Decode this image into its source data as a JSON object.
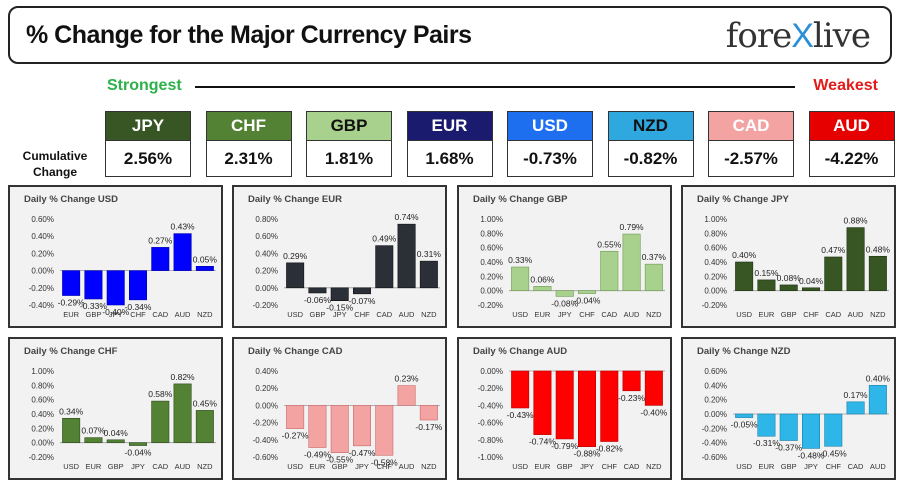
{
  "header": {
    "title": "% Change for the Major Currency Pairs",
    "logo_left": "fore",
    "logo_x": "X",
    "logo_right": "live"
  },
  "scale": {
    "strongest": "Strongest",
    "weakest": "Weakest"
  },
  "cumulative_label": "Cumulative Change",
  "currencies": [
    {
      "code": "JPY",
      "value": "2.56%",
      "bg": "#375623",
      "fg": "#ffffff"
    },
    {
      "code": "CHF",
      "value": "2.31%",
      "bg": "#548235",
      "fg": "#ffffff"
    },
    {
      "code": "GBP",
      "value": "1.81%",
      "bg": "#a9d18e",
      "fg": "#111111"
    },
    {
      "code": "EUR",
      "value": "1.68%",
      "bg": "#1a1a6e",
      "fg": "#ffffff"
    },
    {
      "code": "USD",
      "value": "-0.73%",
      "bg": "#1d6ff0",
      "fg": "#ffffff"
    },
    {
      "code": "NZD",
      "value": "-0.82%",
      "bg": "#2fa8e0",
      "fg": "#111111"
    },
    {
      "code": "CAD",
      "value": "-2.57%",
      "bg": "#f4a3a3",
      "fg": "#ffffff"
    },
    {
      "code": "AUD",
      "value": "-4.22%",
      "bg": "#e60000",
      "fg": "#ffffff"
    }
  ],
  "chart_data": [
    {
      "type": "bar",
      "title": "Daily % Change USD",
      "categories": [
        "EUR",
        "GBP",
        "JPY",
        "CHF",
        "CAD",
        "AUD",
        "NZD"
      ],
      "values": [
        -0.29,
        -0.33,
        -0.4,
        -0.34,
        0.27,
        0.43,
        0.05
      ],
      "labels": [
        "-0.29%",
        "-0.33%",
        "-0.40%",
        "-0.34%",
        "0.27%",
        "0.43%",
        "0.05%"
      ],
      "ylim": [
        -0.4,
        0.6
      ],
      "yticks": [
        -0.4,
        -0.2,
        0,
        0.2,
        0.4,
        0.6
      ],
      "tick_labels": [
        "-0.40%",
        "-0.20%",
        "0.00%",
        "0.20%",
        "0.40%",
        "0.60%"
      ],
      "color": "#0000ff",
      "edge": "#0000aa"
    },
    {
      "type": "bar",
      "title": "Daily % Change EUR",
      "categories": [
        "USD",
        "GBP",
        "JPY",
        "CHF",
        "CAD",
        "AUD",
        "NZD"
      ],
      "values": [
        0.29,
        -0.06,
        -0.15,
        -0.07,
        0.49,
        0.74,
        0.31
      ],
      "labels": [
        "0.29%",
        "-0.06%",
        "-0.15%",
        "-0.07%",
        "0.49%",
        "0.74%",
        "0.31%"
      ],
      "ylim": [
        -0.2,
        0.8
      ],
      "yticks": [
        -0.2,
        0,
        0.2,
        0.4,
        0.6,
        0.8
      ],
      "tick_labels": [
        "-0.20%",
        "0.00%",
        "0.20%",
        "0.40%",
        "0.60%",
        "0.80%"
      ],
      "color": "#2b2f38",
      "edge": "#111111"
    },
    {
      "type": "bar",
      "title": "Daily % Change GBP",
      "categories": [
        "USD",
        "EUR",
        "JPY",
        "CHF",
        "CAD",
        "AUD",
        "NZD"
      ],
      "values": [
        0.33,
        0.06,
        -0.08,
        -0.04,
        0.55,
        0.79,
        0.37
      ],
      "labels": [
        "0.33%",
        "0.06%",
        "-0.08%",
        "-0.04%",
        "0.55%",
        "0.79%",
        "0.37%"
      ],
      "ylim": [
        -0.2,
        1.0
      ],
      "yticks": [
        -0.2,
        0,
        0.2,
        0.4,
        0.6,
        0.8,
        1.0
      ],
      "tick_labels": [
        "-0.20%",
        "0.00%",
        "0.20%",
        "0.40%",
        "0.60%",
        "0.80%",
        "1.00%"
      ],
      "color": "#a9d18e",
      "edge": "#6e9a52"
    },
    {
      "type": "bar",
      "title": "Daily % Change JPY",
      "categories": [
        "USD",
        "EUR",
        "GBP",
        "CHF",
        "CAD",
        "AUD",
        "NZD"
      ],
      "values": [
        0.4,
        0.15,
        0.08,
        0.04,
        0.47,
        0.88,
        0.48
      ],
      "labels": [
        "0.40%",
        "0.15%",
        "0.08%",
        "0.04%",
        "0.47%",
        "0.88%",
        "0.48%"
      ],
      "ylim": [
        -0.2,
        1.0
      ],
      "yticks": [
        -0.2,
        0,
        0.2,
        0.4,
        0.6,
        0.8,
        1.0
      ],
      "tick_labels": [
        "-0.20%",
        "0.00%",
        "0.20%",
        "0.40%",
        "0.60%",
        "0.80%",
        "1.00%"
      ],
      "color": "#375623",
      "edge": "#1f3314"
    },
    {
      "type": "bar",
      "title": "Daily % Change CHF",
      "categories": [
        "USD",
        "EUR",
        "GBP",
        "JPY",
        "CAD",
        "AUD",
        "NZD"
      ],
      "values": [
        0.34,
        0.07,
        0.04,
        -0.04,
        0.58,
        0.82,
        0.45
      ],
      "labels": [
        "0.34%",
        "0.07%",
        "0.04%",
        "-0.04%",
        "0.58%",
        "0.82%",
        "0.45%"
      ],
      "ylim": [
        -0.2,
        1.0
      ],
      "yticks": [
        -0.2,
        0,
        0.2,
        0.4,
        0.6,
        0.8,
        1.0
      ],
      "tick_labels": [
        "-0.20%",
        "0.00%",
        "0.20%",
        "0.40%",
        "0.60%",
        "0.80%",
        "1.00%"
      ],
      "color": "#548235",
      "edge": "#2f4a1d"
    },
    {
      "type": "bar",
      "title": "Daily % Change CAD",
      "categories": [
        "USD",
        "EUR",
        "GBP",
        "JPY",
        "CHF",
        "AUD",
        "NZD"
      ],
      "values": [
        -0.27,
        -0.49,
        -0.55,
        -0.47,
        -0.58,
        0.23,
        -0.17
      ],
      "labels": [
        "-0.27%",
        "-0.49%",
        "-0.55%",
        "-0.47%",
        "-0.58%",
        "0.23%",
        "-0.17%"
      ],
      "ylim": [
        -0.6,
        0.4
      ],
      "yticks": [
        -0.6,
        -0.4,
        -0.2,
        0,
        0.2,
        0.4
      ],
      "tick_labels": [
        "-0.60%",
        "-0.40%",
        "-0.20%",
        "0.00%",
        "0.20%",
        "0.40%"
      ],
      "color": "#f4a3a3",
      "edge": "#c86a6a"
    },
    {
      "type": "bar",
      "title": "Daily % Change AUD",
      "categories": [
        "USD",
        "EUR",
        "GBP",
        "JPY",
        "CHF",
        "CAD",
        "NZD"
      ],
      "values": [
        -0.43,
        -0.74,
        -0.79,
        -0.88,
        -0.82,
        -0.23,
        -0.4
      ],
      "labels": [
        "-0.43%",
        "-0.74%",
        "-0.79%",
        "-0.88%",
        "-0.82%",
        "-0.23%",
        "-0.40%"
      ],
      "ylim": [
        -1.0,
        0
      ],
      "yticks": [
        -1.0,
        -0.8,
        -0.6,
        -0.4,
        -0.2,
        0
      ],
      "tick_labels": [
        "-1.00%",
        "-0.80%",
        "-0.60%",
        "-0.40%",
        "-0.20%",
        "0.00%"
      ],
      "color": "#ff0000",
      "edge": "#b30000"
    },
    {
      "type": "bar",
      "title": "Daily % Change NZD",
      "categories": [
        "USD",
        "EUR",
        "GBP",
        "JPY",
        "CHF",
        "CAD",
        "AUD"
      ],
      "values": [
        -0.05,
        -0.31,
        -0.37,
        -0.48,
        -0.45,
        0.17,
        0.4
      ],
      "labels": [
        "-0.05%",
        "-0.31%",
        "-0.37%",
        "-0.48%",
        "-0.45%",
        "0.17%",
        "0.40%"
      ],
      "ylim": [
        -0.6,
        0.6
      ],
      "yticks": [
        -0.6,
        -0.4,
        -0.2,
        0,
        0.2,
        0.4,
        0.6
      ],
      "tick_labels": [
        "-0.60%",
        "-0.40%",
        "-0.20%",
        "0.00%",
        "0.20%",
        "0.40%",
        "0.60%"
      ],
      "color": "#2fb6e8",
      "edge": "#1a7fa8"
    }
  ]
}
